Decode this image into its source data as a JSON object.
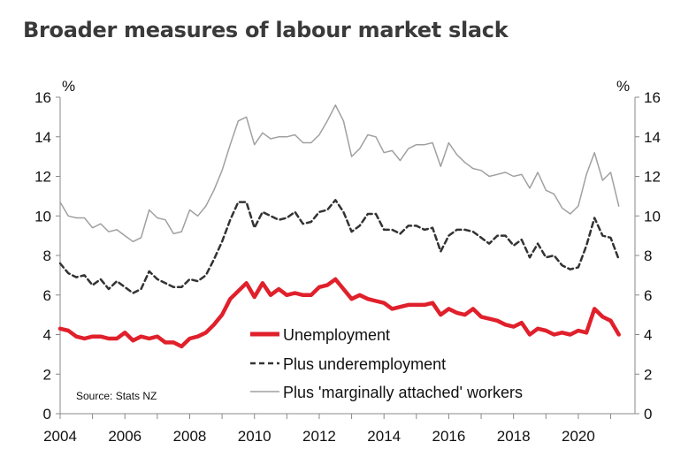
{
  "chart_data": {
    "type": "line",
    "title": "Broader measures of labour market slack",
    "ylabel_left": "%",
    "ylabel_right": "%",
    "ylim": [
      0,
      16
    ],
    "yticks": [
      0,
      2,
      4,
      6,
      8,
      10,
      12,
      14,
      16
    ],
    "xlim": [
      2004,
      2021.75
    ],
    "xticks": [
      "2004",
      "2006",
      "2008",
      "2010",
      "2012",
      "2014",
      "2016",
      "2018",
      "2020"
    ],
    "source": "Source: Stats NZ",
    "legend_position": "bottom-center",
    "series": [
      {
        "name": "Unemployment",
        "color": "#e0202b",
        "style": "solid-thick",
        "x": [
          2004.0,
          2004.25,
          2004.5,
          2004.75,
          2005.0,
          2005.25,
          2005.5,
          2005.75,
          2006.0,
          2006.25,
          2006.5,
          2006.75,
          2007.0,
          2007.25,
          2007.5,
          2007.75,
          2008.0,
          2008.25,
          2008.5,
          2008.75,
          2009.0,
          2009.25,
          2009.5,
          2009.75,
          2010.0,
          2010.25,
          2010.5,
          2010.75,
          2011.0,
          2011.25,
          2011.5,
          2011.75,
          2012.0,
          2012.25,
          2012.5,
          2012.75,
          2013.0,
          2013.25,
          2013.5,
          2013.75,
          2014.0,
          2014.25,
          2014.5,
          2014.75,
          2015.0,
          2015.25,
          2015.5,
          2015.75,
          2016.0,
          2016.25,
          2016.5,
          2016.75,
          2017.0,
          2017.25,
          2017.5,
          2017.75,
          2018.0,
          2018.25,
          2018.5,
          2018.75,
          2019.0,
          2019.25,
          2019.5,
          2019.75,
          2020.0,
          2020.25,
          2020.5,
          2020.75,
          2021.0,
          2021.25
        ],
        "values": [
          4.3,
          4.2,
          3.9,
          3.8,
          3.9,
          3.9,
          3.8,
          3.8,
          4.1,
          3.7,
          3.9,
          3.8,
          3.9,
          3.6,
          3.6,
          3.4,
          3.8,
          3.9,
          4.1,
          4.5,
          5.0,
          5.8,
          6.2,
          6.6,
          5.9,
          6.6,
          6.0,
          6.3,
          6.0,
          6.1,
          6.0,
          6.0,
          6.4,
          6.5,
          6.8,
          6.3,
          5.8,
          6.0,
          5.8,
          5.7,
          5.6,
          5.3,
          5.4,
          5.5,
          5.5,
          5.5,
          5.6,
          5.0,
          5.3,
          5.1,
          5.0,
          5.3,
          4.9,
          4.8,
          4.7,
          4.5,
          4.4,
          4.6,
          4.0,
          4.3,
          4.2,
          4.0,
          4.1,
          4.0,
          4.2,
          4.1,
          5.3,
          4.9,
          4.7,
          4.0
        ]
      },
      {
        "name": "Plus underemployment",
        "color": "#333333",
        "style": "dashed",
        "x": [
          2004.0,
          2004.25,
          2004.5,
          2004.75,
          2005.0,
          2005.25,
          2005.5,
          2005.75,
          2006.0,
          2006.25,
          2006.5,
          2006.75,
          2007.0,
          2007.25,
          2007.5,
          2007.75,
          2008.0,
          2008.25,
          2008.5,
          2008.75,
          2009.0,
          2009.25,
          2009.5,
          2009.75,
          2010.0,
          2010.25,
          2010.5,
          2010.75,
          2011.0,
          2011.25,
          2011.5,
          2011.75,
          2012.0,
          2012.25,
          2012.5,
          2012.75,
          2013.0,
          2013.25,
          2013.5,
          2013.75,
          2014.0,
          2014.25,
          2014.5,
          2014.75,
          2015.0,
          2015.25,
          2015.5,
          2015.75,
          2016.0,
          2016.25,
          2016.5,
          2016.75,
          2017.0,
          2017.25,
          2017.5,
          2017.75,
          2018.0,
          2018.25,
          2018.5,
          2018.75,
          2019.0,
          2019.25,
          2019.5,
          2019.75,
          2020.0,
          2020.25,
          2020.5,
          2020.75,
          2021.0,
          2021.25
        ],
        "values": [
          7.6,
          7.1,
          6.9,
          7.0,
          6.5,
          6.8,
          6.3,
          6.7,
          6.4,
          6.1,
          6.3,
          7.2,
          6.8,
          6.6,
          6.4,
          6.4,
          6.8,
          6.7,
          7.0,
          7.8,
          8.7,
          9.8,
          10.7,
          10.7,
          9.4,
          10.2,
          10.0,
          9.8,
          9.9,
          10.2,
          9.6,
          9.7,
          10.2,
          10.3,
          10.8,
          10.2,
          9.2,
          9.5,
          10.1,
          10.1,
          9.3,
          9.3,
          9.1,
          9.5,
          9.5,
          9.3,
          9.4,
          8.2,
          9.0,
          9.3,
          9.3,
          9.2,
          8.9,
          8.6,
          9.0,
          9.0,
          8.5,
          8.8,
          7.9,
          8.6,
          7.9,
          8.0,
          7.5,
          7.3,
          7.4,
          8.5,
          9.9,
          9.0,
          8.9,
          7.8
        ]
      },
      {
        "name": "Plus 'marginally attached' workers",
        "color": "#a0a0a0",
        "style": "solid-thin",
        "x": [
          2004.0,
          2004.25,
          2004.5,
          2004.75,
          2005.0,
          2005.25,
          2005.5,
          2005.75,
          2006.0,
          2006.25,
          2006.5,
          2006.75,
          2007.0,
          2007.25,
          2007.5,
          2007.75,
          2008.0,
          2008.25,
          2008.5,
          2008.75,
          2009.0,
          2009.25,
          2009.5,
          2009.75,
          2010.0,
          2010.25,
          2010.5,
          2010.75,
          2011.0,
          2011.25,
          2011.5,
          2011.75,
          2012.0,
          2012.25,
          2012.5,
          2012.75,
          2013.0,
          2013.25,
          2013.5,
          2013.75,
          2014.0,
          2014.25,
          2014.5,
          2014.75,
          2015.0,
          2015.25,
          2015.5,
          2015.75,
          2016.0,
          2016.25,
          2016.5,
          2016.75,
          2017.0,
          2017.25,
          2017.5,
          2017.75,
          2018.0,
          2018.25,
          2018.5,
          2018.75,
          2019.0,
          2019.25,
          2019.5,
          2019.75,
          2020.0,
          2020.25,
          2020.5,
          2020.75,
          2021.0,
          2021.25
        ],
        "values": [
          10.7,
          10.0,
          9.9,
          9.9,
          9.4,
          9.6,
          9.2,
          9.3,
          9.0,
          8.7,
          8.9,
          10.3,
          9.9,
          9.8,
          9.1,
          9.2,
          10.3,
          10.0,
          10.5,
          11.3,
          12.3,
          13.6,
          14.8,
          15.0,
          13.6,
          14.2,
          13.9,
          14.0,
          14.0,
          14.1,
          13.7,
          13.7,
          14.1,
          14.8,
          15.6,
          14.8,
          13.0,
          13.4,
          14.1,
          14.0,
          13.2,
          13.3,
          12.8,
          13.4,
          13.6,
          13.6,
          13.7,
          12.5,
          13.7,
          13.1,
          12.7,
          12.4,
          12.3,
          12.0,
          12.1,
          12.2,
          12.0,
          12.1,
          11.4,
          12.2,
          11.3,
          11.1,
          10.4,
          10.1,
          10.5,
          12.1,
          13.2,
          11.8,
          12.2,
          10.5
        ]
      }
    ]
  }
}
